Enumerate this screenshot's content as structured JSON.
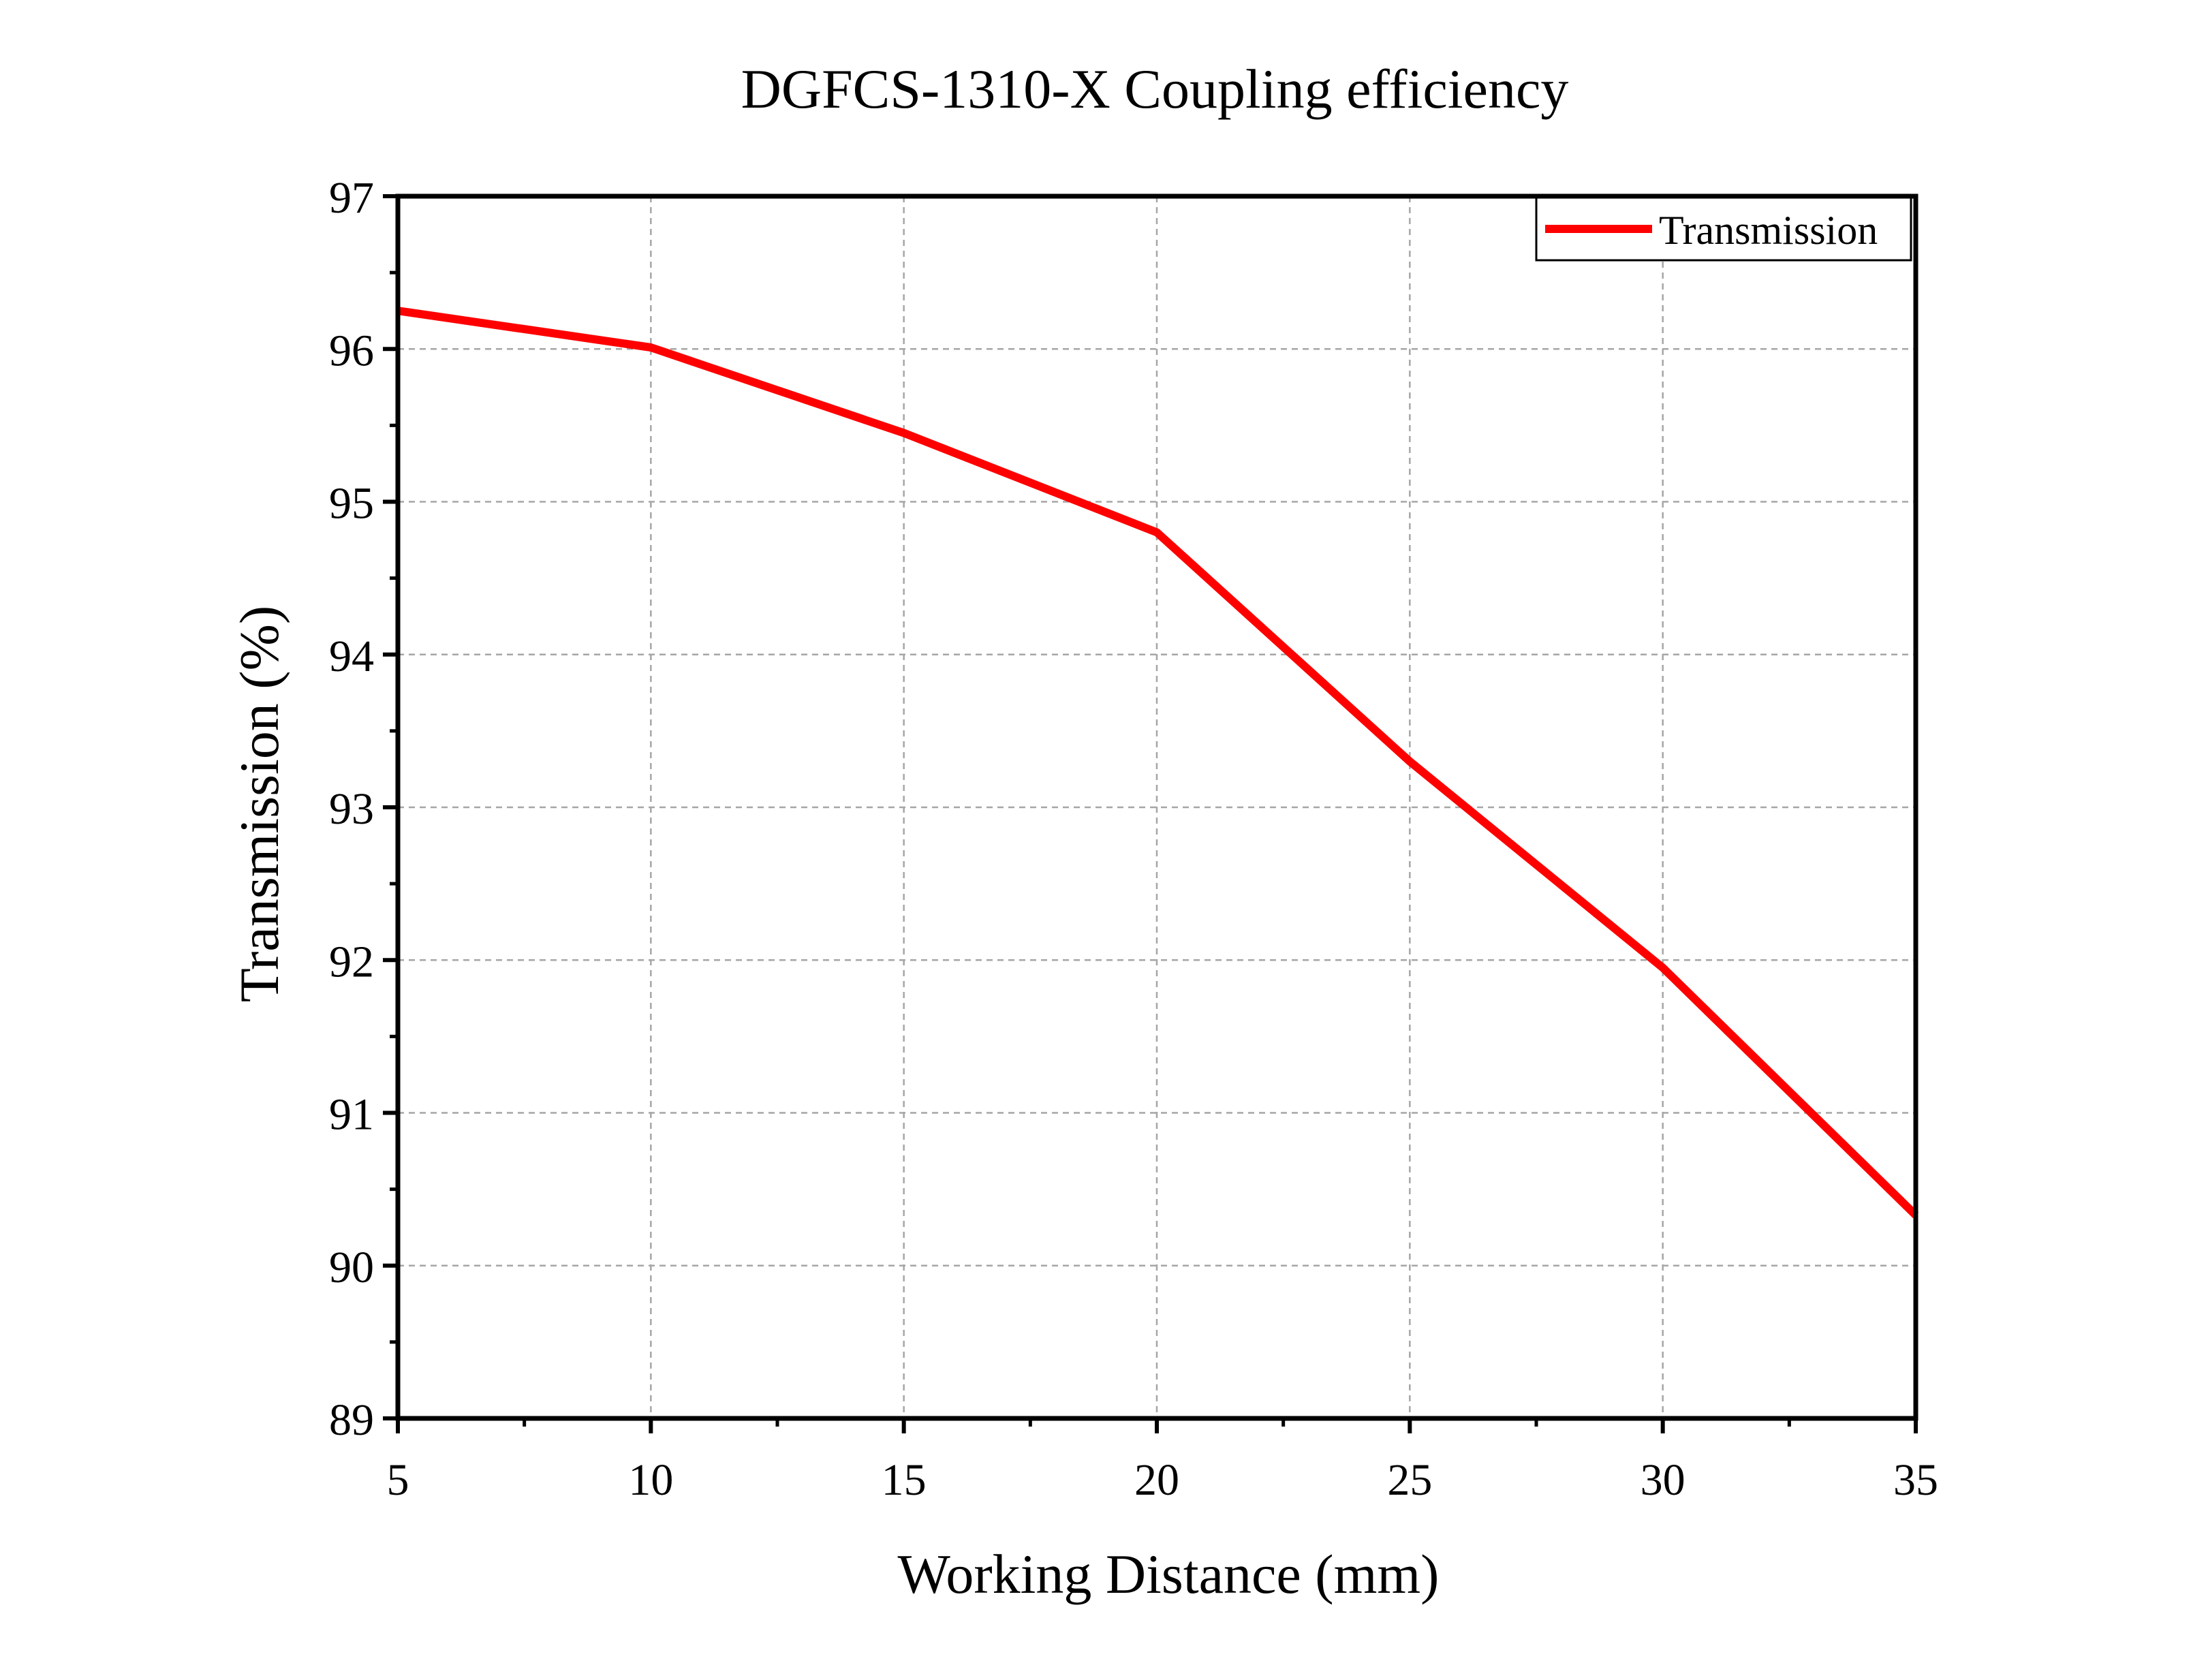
{
  "chart_data": {
    "type": "line",
    "title": "DGFCS-1310-X Coupling efficiency",
    "xlabel": "Working Distance (mm)",
    "ylabel": "Transmission (%)",
    "xlim": [
      5,
      35
    ],
    "ylim": [
      89,
      97
    ],
    "x_ticks": [
      "5",
      "10",
      "15",
      "20",
      "25",
      "30",
      "35"
    ],
    "y_ticks": [
      "89",
      "90",
      "91",
      "92",
      "93",
      "94",
      "95",
      "96",
      "97"
    ],
    "grid": true,
    "legend_position": "top-right",
    "series": [
      {
        "name": "Transmission",
        "color": "#ff0000",
        "x": [
          5,
          10,
          15,
          20,
          25,
          30,
          35
        ],
        "y": [
          96.25,
          96.01,
          95.45,
          94.8,
          93.3,
          91.95,
          90.33
        ]
      }
    ]
  }
}
